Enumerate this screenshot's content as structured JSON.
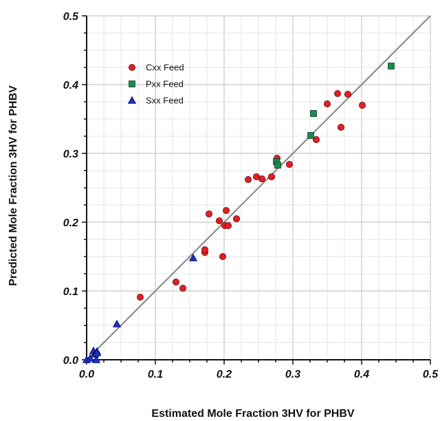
{
  "chart_data": {
    "type": "scatter",
    "xlabel": "Estimated Mole Fraction 3HV for PHBV",
    "ylabel": "Predicted Mole Fraction 3HV for PHBV",
    "xlim": [
      0,
      0.5
    ],
    "ylim": [
      0,
      0.5
    ],
    "x_ticks": [
      "0.0",
      "0.1",
      "0.2",
      "0.3",
      "0.4",
      "0.5"
    ],
    "y_ticks": [
      "0.0",
      "0.1",
      "0.2",
      "0.3",
      "0.4",
      "0.5"
    ],
    "grid": true,
    "minor_grid_step": 0.025,
    "reference_line": {
      "type": "identity",
      "from": [
        0,
        0
      ],
      "to": [
        0.5,
        0.5
      ],
      "color": "#8c8c8c"
    },
    "legend_position": "top-left",
    "series": [
      {
        "name": "Cxx Feed",
        "marker": "circle",
        "color": "#e31e24",
        "x": [
          0.078,
          0.13,
          0.14,
          0.172,
          0.172,
          0.178,
          0.193,
          0.198,
          0.201,
          0.203,
          0.206,
          0.218,
          0.235,
          0.247,
          0.255,
          0.269,
          0.277,
          0.295,
          0.334,
          0.35,
          0.365,
          0.37,
          0.38,
          0.401
        ],
        "y": [
          0.091,
          0.113,
          0.104,
          0.156,
          0.16,
          0.212,
          0.202,
          0.15,
          0.195,
          0.217,
          0.195,
          0.205,
          0.262,
          0.266,
          0.263,
          0.266,
          0.293,
          0.284,
          0.32,
          0.372,
          0.387,
          0.338,
          0.386,
          0.37
        ]
      },
      {
        "name": "Pxx Feed",
        "marker": "square",
        "color": "#1b8a4e",
        "x": [
          0.276,
          0.278,
          0.326,
          0.33,
          0.443
        ],
        "y": [
          0.288,
          0.283,
          0.326,
          0.358,
          0.427
        ]
      },
      {
        "name": "Sxx Feed",
        "marker": "triangle",
        "color": "#1f2fbf",
        "x": [
          0.0,
          0.005,
          0.01,
          0.012,
          0.014,
          0.015,
          0.015,
          0.044,
          0.155
        ],
        "y": [
          0.0,
          0.002,
          0.013,
          0.008,
          0.0,
          0.012,
          0.01,
          0.052,
          0.148
        ]
      }
    ]
  }
}
